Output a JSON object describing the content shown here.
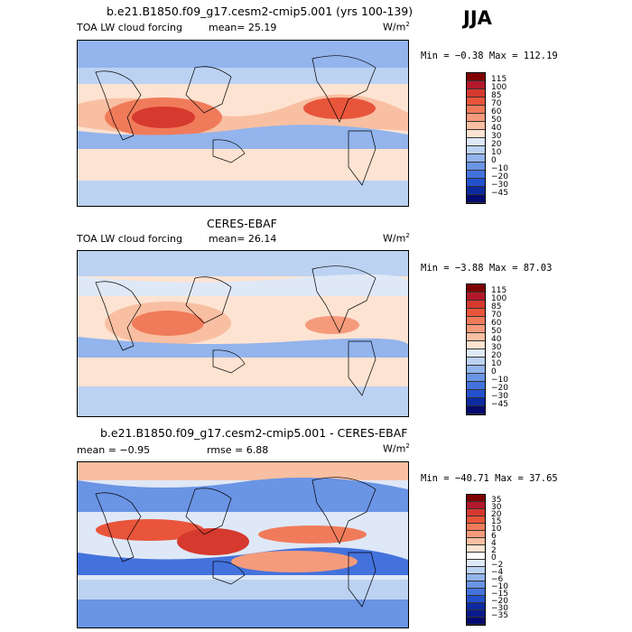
{
  "season": "JJA",
  "panels": [
    {
      "title": "b.e21.B1850.f09_g17.cesm2-cmip5.001 (yrs 100-139)",
      "variable": "TOA LW cloud forcing",
      "mean_text": "mean=  25.19",
      "rmse_text": "",
      "unit": "W/m",
      "unit_exp": "2",
      "minmax": "Min =  −0.38 Max = 112.19",
      "levels": [
        "115",
        "100",
        "85",
        "70",
        "60",
        "50",
        "40",
        "30",
        "20",
        "10",
        "0",
        "−10",
        "−20",
        "−30",
        "−45"
      ],
      "colors": [
        "#7f0000",
        "#b2182b",
        "#d6392e",
        "#e8553b",
        "#f07b5a",
        "#f59b7c",
        "#f9bfa2",
        "#fde3d2",
        "#dfe8f7",
        "#bcd2f2",
        "#93b4ec",
        "#6a94e4",
        "#4472dc",
        "#2350cc",
        "#0d2aa0",
        "#050a6e"
      ],
      "field_colors": {
        "high": "#e8553b",
        "mid_high": "#f9bfa2",
        "mid": "#fde3d2",
        "low": "#93b4ec",
        "very_low": "#6a94e4",
        "cold": "#bcd2f2"
      }
    },
    {
      "title": "CERES-EBAF",
      "variable": "TOA LW cloud forcing",
      "mean_text": "mean=  26.14",
      "rmse_text": "",
      "unit": "W/m",
      "unit_exp": "2",
      "minmax": "Min =  −3.88 Max =  87.03",
      "levels": [
        "115",
        "100",
        "85",
        "70",
        "60",
        "50",
        "40",
        "30",
        "20",
        "10",
        "0",
        "−10",
        "−20",
        "−30",
        "−45"
      ],
      "colors": [
        "#7f0000",
        "#b2182b",
        "#d6392e",
        "#e8553b",
        "#f07b5a",
        "#f59b7c",
        "#f9bfa2",
        "#fde3d2",
        "#dfe8f7",
        "#bcd2f2",
        "#93b4ec",
        "#6a94e4",
        "#4472dc",
        "#2350cc",
        "#0d2aa0",
        "#050a6e"
      ]
    },
    {
      "title": "b.e21.B1850.f09_g17.cesm2-cmip5.001 - CERES-EBAF",
      "variable": "",
      "mean_text": "mean =  −0.95",
      "rmse_text": "rmse =   6.88",
      "unit": "W/m",
      "unit_exp": "2",
      "minmax": "Min = −40.71 Max =  37.65",
      "levels": [
        "35",
        "30",
        "20",
        "15",
        "10",
        "6",
        "4",
        "2",
        "0",
        "−2",
        "−4",
        "−6",
        "−10",
        "−15",
        "−20",
        "−30",
        "−35"
      ],
      "colors": [
        "#7f0000",
        "#b2182b",
        "#d6392e",
        "#e8553b",
        "#f07b5a",
        "#f59b7c",
        "#f9bfa2",
        "#fde3d2",
        "#ffffff",
        "#dfe8f7",
        "#bcd2f2",
        "#93b4ec",
        "#6a94e4",
        "#4472dc",
        "#2350cc",
        "#0d2aa0",
        "#0a1a8a",
        "#050a6e"
      ]
    }
  ],
  "chart_data": [
    {
      "type": "heatmap",
      "title": "b.e21.B1850.f09_g17.cesm2-cmip5.001 (yrs 100-139)",
      "mean": 25.19,
      "min": -0.38,
      "max": 112.19,
      "levels": [
        115,
        100,
        85,
        70,
        60,
        50,
        40,
        30,
        20,
        10,
        0,
        -10,
        -20,
        -30,
        -45
      ]
    },
    {
      "type": "heatmap",
      "title": "CERES-EBAF",
      "mean": 26.14,
      "min": -3.88,
      "max": 87.03,
      "levels": [
        115,
        100,
        85,
        70,
        60,
        50,
        40,
        30,
        20,
        10,
        0,
        -10,
        -20,
        -30,
        -45
      ]
    },
    {
      "type": "heatmap",
      "title": "b.e21.B1850.f09_g17.cesm2-cmip5.001 - CERES-EBAF",
      "mean": -0.95,
      "rmse": 6.88,
      "min": -40.71,
      "max": 37.65,
      "levels": [
        35,
        30,
        20,
        15,
        10,
        6,
        4,
        2,
        0,
        -2,
        -4,
        -6,
        -10,
        -15,
        -20,
        -30,
        -35
      ]
    }
  ]
}
